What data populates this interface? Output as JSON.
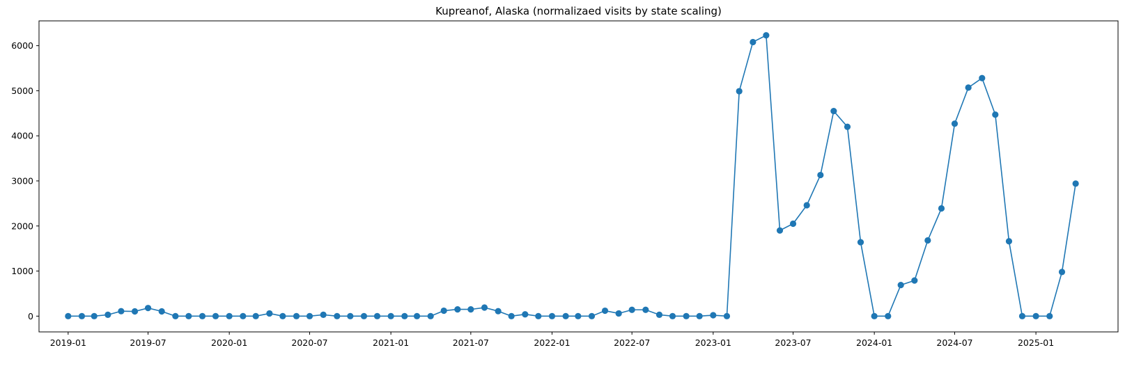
{
  "chart_data": {
    "type": "line",
    "title": "Kupreanof, Alaska (normalizaed visits by state scaling)",
    "xlabel": "",
    "ylabel": "",
    "x": [
      "2019-01",
      "2019-02",
      "2019-03",
      "2019-04",
      "2019-05",
      "2019-06",
      "2019-07",
      "2019-08",
      "2019-09",
      "2019-10",
      "2019-11",
      "2019-12",
      "2020-01",
      "2020-02",
      "2020-03",
      "2020-04",
      "2020-05",
      "2020-06",
      "2020-07",
      "2020-08",
      "2020-09",
      "2020-10",
      "2020-11",
      "2020-12",
      "2021-01",
      "2021-02",
      "2021-03",
      "2021-04",
      "2021-05",
      "2021-06",
      "2021-07",
      "2021-08",
      "2021-09",
      "2021-10",
      "2021-11",
      "2021-12",
      "2022-01",
      "2022-02",
      "2022-03",
      "2022-04",
      "2022-05",
      "2022-06",
      "2022-07",
      "2022-08",
      "2022-09",
      "2022-10",
      "2022-11",
      "2022-12",
      "2023-01",
      "2023-02",
      "2023-03",
      "2023-04",
      "2023-05",
      "2023-06",
      "2023-07",
      "2023-08",
      "2023-09",
      "2023-10",
      "2023-11",
      "2023-12",
      "2024-01",
      "2024-02",
      "2024-03",
      "2024-04",
      "2024-05",
      "2024-06",
      "2024-07",
      "2024-08",
      "2024-09",
      "2024-10",
      "2024-11",
      "2024-12",
      "2025-01",
      "2025-02",
      "2025-03",
      "2025-04"
    ],
    "values": [
      0,
      0,
      0,
      30,
      110,
      105,
      180,
      105,
      0,
      0,
      0,
      0,
      0,
      0,
      0,
      60,
      0,
      0,
      0,
      30,
      0,
      0,
      0,
      0,
      0,
      0,
      0,
      0,
      120,
      150,
      150,
      190,
      110,
      0,
      40,
      0,
      0,
      0,
      0,
      0,
      120,
      60,
      140,
      140,
      30,
      0,
      0,
      0,
      20,
      0,
      4990,
      6080,
      6230,
      1900,
      2050,
      2460,
      3130,
      4550,
      4200,
      1640,
      0,
      0,
      690,
      790,
      1680,
      2390,
      4270,
      5070,
      5280,
      4470,
      1660,
      0,
      0,
      0,
      980,
      2940
    ],
    "xticks": [
      "2019-01",
      "2019-07",
      "2020-01",
      "2020-07",
      "2021-01",
      "2021-07",
      "2022-01",
      "2022-07",
      "2023-01",
      "2023-07",
      "2024-01",
      "2024-07",
      "2025-01"
    ],
    "yticks": [
      0,
      1000,
      2000,
      3000,
      4000,
      5000,
      6000
    ],
    "ylim": [
      -350,
      6550
    ],
    "xlim": [
      "2018-10-27",
      "2025-07-06"
    ],
    "marker": "circle",
    "grid": false,
    "colors": {
      "line": "#1f77b4",
      "axis": "#000000"
    }
  }
}
